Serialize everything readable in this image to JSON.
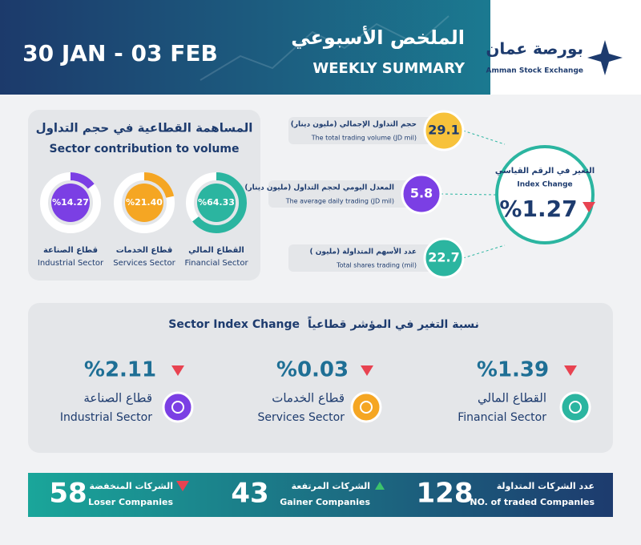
{
  "header": {
    "date": "30 JAN - 03 FEB",
    "title_ar": "الملخص الأسبوعي",
    "title_en": "WEEKLY SUMMARY",
    "logo_ar": "بورصة عمان",
    "logo_en": "Amman Stock Exchange"
  },
  "sector_contribution": {
    "title_ar": "المساهمة القطاعية في حجم التداول",
    "title_en": "Sector contribution to volume",
    "sectors": [
      {
        "value": 64.33,
        "label": "%64.33",
        "name_ar": "القطاع المالي",
        "name_en": "Financial Sector"
      },
      {
        "value": 21.4,
        "label": "%21.40",
        "name_ar": "قطاع الخدمات",
        "name_en": "Services Sector"
      },
      {
        "value": 14.27,
        "label": "%14.27",
        "name_ar": "قطاع الصناعة",
        "name_en": "Industrial Sector"
      }
    ]
  },
  "trading": [
    {
      "label_ar": "حجم التداول الإجمالي (مليون دينار)",
      "label_en": "The total trading volume (JD mil)",
      "value": 29.1
    },
    {
      "label_ar": "المعدل اليومي لحجم التداول (مليون دينار)",
      "label_en": "The average daily trading (JD mil)",
      "value": 5.8
    },
    {
      "label_ar": "عدد الأسهم المتداولة (مليون )",
      "label_en": "Total shares trading (mil)",
      "value": 22.7
    }
  ],
  "index_change": {
    "label_ar": "التغير في الرقم القياسي",
    "label_en": "Index Change",
    "value": "%1.27"
  },
  "sector_index": {
    "title_en": "Sector Index Change",
    "title_ar": "نسبة التغير في المؤشر قطاعياً",
    "sectors": [
      {
        "change": "%1.39",
        "name_ar": "القطاع المالي",
        "name_en": "Financial Sector"
      },
      {
        "change": "%0.03",
        "name_ar": "قطاع الخدمات",
        "name_en": "Services Sector"
      },
      {
        "change": "%2.11",
        "name_ar": "قطاع الصناعة",
        "name_en": "Industrial Sector"
      }
    ]
  },
  "companies": [
    {
      "label_ar": "عدد الشركات المتداولة",
      "label_en": "NO. of traded Companies",
      "value": 128
    },
    {
      "label_ar": "الشركات المرتفعة",
      "label_en": "Gainer Companies",
      "value": 43
    },
    {
      "label_ar": "الشركات المنخفضة",
      "label_en": "Loser Companies",
      "value": 58
    }
  ]
}
